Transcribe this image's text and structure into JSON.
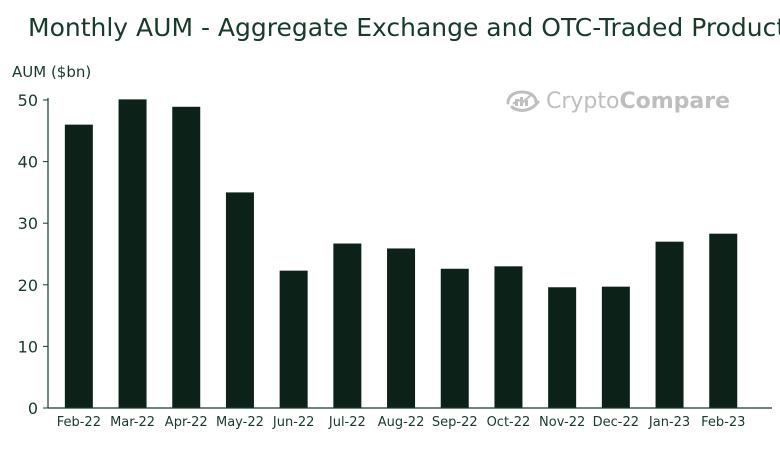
{
  "chart_data": {
    "type": "bar",
    "title": "Monthly AUM - Aggregate Exchange and OTC-Traded Products",
    "xlabel": "",
    "ylabel": "AUM ($bn)",
    "categories": [
      "Feb-22",
      "Mar-22",
      "Apr-22",
      "May-22",
      "Jun-22",
      "Jul-22",
      "Aug-22",
      "Sep-22",
      "Oct-22",
      "Nov-22",
      "Dec-22",
      "Jan-23",
      "Feb-23"
    ],
    "values": [
      46,
      50.1,
      48.9,
      35,
      22.3,
      26.7,
      25.9,
      22.6,
      23,
      19.6,
      19.7,
      27,
      28.3
    ],
    "ylim": [
      0,
      50
    ],
    "yticks": [
      "0",
      "10",
      "20",
      "30",
      "40",
      "50"
    ],
    "grid": false,
    "bar_color": "#0c2218",
    "axis_color": "#173a2a"
  },
  "watermark": {
    "text_part1": "Crypto",
    "text_part2": "Compare",
    "icon": "cryptocompare-logo-icon",
    "color": "#b7b7b7"
  }
}
